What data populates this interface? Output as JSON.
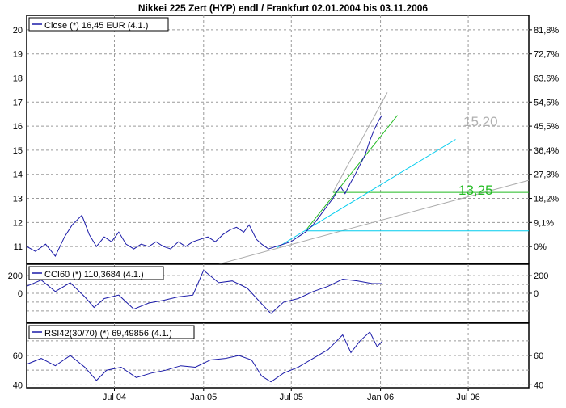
{
  "title": "Nikkei 225 Zert (HYP) endl / Frankfurt 02.01.2004  bis 03.11.2006",
  "colors": {
    "price": "#1a1aa8",
    "frame": "#000000",
    "grid": "#9a9a9a",
    "fan_gray": "#aaaaaa",
    "fan_green": "#22bb22",
    "fan_cyan": "#00ccee",
    "label_gray": "#b0b0b0",
    "label_green": "#22bb22"
  },
  "x_axis": {
    "tick_labels": [
      "Jul 04",
      "Jan 05",
      "Jul 05",
      "Jan 06",
      "Jul 06"
    ]
  },
  "annotations": {
    "level_high": "15.20",
    "level_low": "13,25"
  },
  "chart_data": [
    {
      "type": "line",
      "panel": "price",
      "legend": "Close (*) 16,45 EUR (4.1.)",
      "y_ticks_left": [
        "20",
        "19",
        "18",
        "17",
        "16",
        "15",
        "14",
        "13",
        "12",
        "11"
      ],
      "y_ticks_right": [
        "81,8%",
        "72,7%",
        "63,6%",
        "54,5%",
        "45,5%",
        "36,4%",
        "27,3%",
        "18,2%",
        "9,1%",
        "0%"
      ],
      "ylim": [
        10.3,
        20.6
      ],
      "xlim": [
        "2004-01-02",
        "2006-11-03"
      ],
      "grid": true,
      "series": [
        {
          "values_by_date": [
            [
              "2004-01-02",
              11.0
            ],
            [
              "2004-01-20",
              10.8
            ],
            [
              "2004-02-10",
              11.1
            ],
            [
              "2004-03-01",
              10.6
            ],
            [
              "2004-03-20",
              11.4
            ],
            [
              "2004-04-05",
              11.9
            ],
            [
              "2004-04-25",
              12.3
            ],
            [
              "2004-05-10",
              11.5
            ],
            [
              "2004-05-25",
              11.0
            ],
            [
              "2004-06-10",
              11.4
            ],
            [
              "2004-06-25",
              11.2
            ],
            [
              "2004-07-10",
              11.6
            ],
            [
              "2004-07-25",
              11.1
            ],
            [
              "2004-08-10",
              10.9
            ],
            [
              "2004-08-25",
              11.1
            ],
            [
              "2004-09-10",
              11.0
            ],
            [
              "2004-09-25",
              11.2
            ],
            [
              "2004-10-10",
              11.0
            ],
            [
              "2004-10-25",
              10.9
            ],
            [
              "2004-11-10",
              11.2
            ],
            [
              "2004-11-25",
              11.0
            ],
            [
              "2004-12-10",
              11.2
            ],
            [
              "2004-12-25",
              11.3
            ],
            [
              "2005-01-10",
              11.4
            ],
            [
              "2005-01-25",
              11.2
            ],
            [
              "2005-02-10",
              11.5
            ],
            [
              "2005-02-25",
              11.7
            ],
            [
              "2005-03-10",
              11.8
            ],
            [
              "2005-03-25",
              11.6
            ],
            [
              "2005-04-05",
              11.9
            ],
            [
              "2005-04-20",
              11.3
            ],
            [
              "2005-05-01",
              11.1
            ],
            [
              "2005-05-15",
              10.9
            ],
            [
              "2005-05-30",
              11.0
            ],
            [
              "2005-06-15",
              11.1
            ],
            [
              "2005-06-30",
              11.2
            ],
            [
              "2005-07-15",
              11.4
            ],
            [
              "2005-07-30",
              11.6
            ],
            [
              "2005-08-15",
              11.9
            ],
            [
              "2005-08-30",
              12.3
            ],
            [
              "2005-09-10",
              12.6
            ],
            [
              "2005-09-25",
              13.0
            ],
            [
              "2005-10-10",
              13.5
            ],
            [
              "2005-10-20",
              13.2
            ],
            [
              "2005-10-30",
              13.6
            ],
            [
              "2005-11-10",
              14.0
            ],
            [
              "2005-11-20",
              14.4
            ],
            [
              "2005-11-30",
              14.8
            ],
            [
              "2005-12-10",
              15.4
            ],
            [
              "2005-12-20",
              15.9
            ],
            [
              "2005-12-30",
              16.3
            ],
            [
              "2006-01-04",
              16.45
            ]
          ]
        }
      ],
      "trend_lines": [
        {
          "color_key": "fan_gray",
          "from": [
            "2005-01-01",
            10.1
          ],
          "to": [
            "2006-11-03",
            13.75
          ]
        },
        {
          "color_key": "fan_gray",
          "from": [
            "2005-09-25",
            13.25
          ],
          "to": [
            "2006-01-15",
            17.4
          ]
        },
        {
          "color_key": "fan_green",
          "from": [
            "2005-08-01",
            11.7
          ],
          "to": [
            "2006-02-05",
            16.45
          ]
        },
        {
          "color_key": "fan_green",
          "from": [
            "2005-09-25",
            13.25
          ],
          "to": [
            "2006-11-03",
            13.25
          ]
        },
        {
          "color_key": "fan_cyan",
          "from": [
            "2005-06-01",
            10.95
          ],
          "to": [
            "2006-06-05",
            15.45
          ]
        },
        {
          "color_key": "fan_cyan",
          "from": [
            "2005-08-01",
            11.65
          ],
          "to": [
            "2006-11-03",
            11.65
          ]
        }
      ]
    },
    {
      "type": "line",
      "panel": "cci",
      "legend": "CCI60 (*) 110,3684 (4.1.)",
      "y_ticks_left": [
        "200",
        "0"
      ],
      "y_ticks_right": [
        "200",
        "0"
      ],
      "ylim": [
        -330,
        330
      ],
      "grid": true,
      "series": [
        {
          "values_by_date": [
            [
              "2004-01-02",
              80
            ],
            [
              "2004-02-01",
              150
            ],
            [
              "2004-03-01",
              20
            ],
            [
              "2004-04-01",
              120
            ],
            [
              "2004-05-01",
              -40
            ],
            [
              "2004-05-20",
              -160
            ],
            [
              "2004-06-10",
              -60
            ],
            [
              "2004-07-10",
              -20
            ],
            [
              "2004-08-10",
              -180
            ],
            [
              "2004-09-10",
              -110
            ],
            [
              "2004-10-10",
              -80
            ],
            [
              "2004-11-10",
              -40
            ],
            [
              "2004-12-10",
              -20
            ],
            [
              "2005-01-01",
              260
            ],
            [
              "2005-02-01",
              120
            ],
            [
              "2005-03-01",
              140
            ],
            [
              "2005-04-01",
              60
            ],
            [
              "2005-05-01",
              -120
            ],
            [
              "2005-05-20",
              -230
            ],
            [
              "2005-06-15",
              -100
            ],
            [
              "2005-07-15",
              -60
            ],
            [
              "2005-08-15",
              20
            ],
            [
              "2005-09-15",
              80
            ],
            [
              "2005-10-15",
              160
            ],
            [
              "2005-11-15",
              140
            ],
            [
              "2005-12-15",
              110
            ],
            [
              "2006-01-04",
              110
            ]
          ]
        }
      ]
    },
    {
      "type": "line",
      "panel": "rsi",
      "legend": "RSI42(30/70) (*) 69,49856 (4.1.)",
      "y_ticks_left": [
        "60",
        "40"
      ],
      "y_ticks_right": [
        "60",
        "40"
      ],
      "ylim": [
        38,
        82
      ],
      "grid": true,
      "series": [
        {
          "values_by_date": [
            [
              "2004-01-02",
              54
            ],
            [
              "2004-02-01",
              58
            ],
            [
              "2004-03-01",
              53
            ],
            [
              "2004-04-01",
              60
            ],
            [
              "2004-05-01",
              52
            ],
            [
              "2004-05-25",
              43
            ],
            [
              "2004-06-15",
              50
            ],
            [
              "2004-07-15",
              52
            ],
            [
              "2004-08-15",
              45
            ],
            [
              "2004-09-15",
              48
            ],
            [
              "2004-10-15",
              50
            ],
            [
              "2004-11-15",
              53
            ],
            [
              "2004-12-15",
              52
            ],
            [
              "2005-01-15",
              57
            ],
            [
              "2005-02-15",
              58
            ],
            [
              "2005-03-15",
              60
            ],
            [
              "2005-04-10",
              57
            ],
            [
              "2005-05-01",
              46
            ],
            [
              "2005-05-20",
              42
            ],
            [
              "2005-06-15",
              48
            ],
            [
              "2005-07-15",
              52
            ],
            [
              "2005-08-15",
              58
            ],
            [
              "2005-09-15",
              64
            ],
            [
              "2005-10-15",
              74
            ],
            [
              "2005-11-01",
              62
            ],
            [
              "2005-11-20",
              70
            ],
            [
              "2005-12-10",
              76
            ],
            [
              "2005-12-25",
              66
            ],
            [
              "2006-01-04",
              69.5
            ]
          ]
        }
      ]
    }
  ]
}
